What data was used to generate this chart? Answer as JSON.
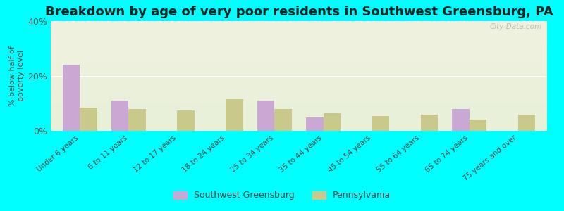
{
  "title": "Breakdown by age of very poor residents in Southwest Greensburg, PA",
  "ylabel": "% below half of\npoverty level",
  "categories": [
    "Under 6 years",
    "6 to 11 years",
    "12 to 17 years",
    "18 to 24 years",
    "25 to 34 years",
    "35 to 44 years",
    "45 to 54 years",
    "55 to 64 years",
    "65 to 74 years",
    "75 years and over"
  ],
  "sw_values": [
    24.0,
    11.0,
    0.0,
    0.0,
    11.0,
    5.0,
    0.0,
    0.0,
    8.0,
    0.0
  ],
  "pa_values": [
    8.5,
    8.0,
    7.5,
    11.5,
    8.0,
    6.5,
    5.5,
    6.0,
    4.0,
    6.0
  ],
  "sw_color": "#c9a8d4",
  "pa_color": "#c8c98a",
  "ylim": [
    0,
    40
  ],
  "yticks": [
    0,
    20,
    40
  ],
  "ytick_labels": [
    "0%",
    "20%",
    "40%"
  ],
  "background_color": "#00ffff",
  "plot_bg_top": "#f0f2e0",
  "plot_bg_bottom": "#e8f0d8",
  "legend_sw": "Southwest Greensburg",
  "legend_pa": "Pennsylvania",
  "watermark": "City-Data.com",
  "title_fontsize": 13,
  "bar_width": 0.35
}
